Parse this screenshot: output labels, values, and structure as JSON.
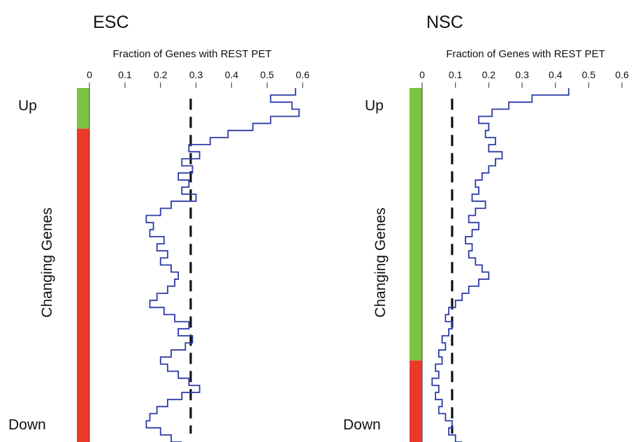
{
  "chart_data": [
    {
      "type": "line",
      "title": "ESC",
      "xlabel": "Fraction of Genes with REST PET",
      "ylabel": "Changing Genes",
      "row_labels": {
        "top": "Up",
        "bottom": "Down"
      },
      "xticks": [
        0,
        0.1,
        0.2,
        0.3,
        0.4,
        0.5,
        0.6
      ],
      "xtick_labels": [
        "0",
        "0.1",
        "0.2",
        "0.3",
        "0.4",
        "0.5",
        "0.6"
      ],
      "xlim": [
        0,
        0.6
      ],
      "ylim": [
        0,
        1
      ],
      "reference_line": 0.285,
      "side_bar": [
        {
          "from": 0,
          "to": 0.115,
          "color": "#7dc242"
        },
        {
          "from": 0.115,
          "to": 1,
          "color": "#e8392a"
        }
      ],
      "series": [
        {
          "color": "#2b3aa8",
          "y": [
            0,
            0.02,
            0.04,
            0.06,
            0.08,
            0.1,
            0.12,
            0.14,
            0.16,
            0.18,
            0.2,
            0.22,
            0.24,
            0.26,
            0.28,
            0.3,
            0.32,
            0.34,
            0.36,
            0.38,
            0.4,
            0.42,
            0.44,
            0.46,
            0.48,
            0.5,
            0.52,
            0.54,
            0.56,
            0.58,
            0.6,
            0.62,
            0.64,
            0.66,
            0.68,
            0.7,
            0.72,
            0.74,
            0.76,
            0.78,
            0.8,
            0.82,
            0.84,
            0.86,
            0.88,
            0.9,
            0.92,
            0.94,
            0.96,
            0.98,
            1.0
          ],
          "x": [
            0.58,
            0.51,
            0.57,
            0.59,
            0.51,
            0.46,
            0.39,
            0.34,
            0.28,
            0.31,
            0.26,
            0.29,
            0.25,
            0.28,
            0.26,
            0.3,
            0.23,
            0.2,
            0.16,
            0.18,
            0.17,
            0.21,
            0.19,
            0.22,
            0.2,
            0.23,
            0.25,
            0.24,
            0.22,
            0.19,
            0.17,
            0.21,
            0.24,
            0.28,
            0.25,
            0.29,
            0.27,
            0.23,
            0.2,
            0.22,
            0.25,
            0.28,
            0.31,
            0.26,
            0.22,
            0.19,
            0.17,
            0.16,
            0.2,
            0.23,
            0.26
          ]
        }
      ]
    },
    {
      "type": "line",
      "title": "NSC",
      "xlabel": "Fraction of Genes with REST PET",
      "ylabel": "Changing Genes",
      "row_labels": {
        "top": "Up",
        "bottom": "Down"
      },
      "xticks": [
        0,
        0.1,
        0.2,
        0.3,
        0.4,
        0.5,
        0.6
      ],
      "xtick_labels": [
        "0",
        "0.1",
        "0.2",
        "0.3",
        "0.4",
        "0.5",
        "0.6"
      ],
      "xlim": [
        0,
        0.6
      ],
      "ylim": [
        0,
        1
      ],
      "reference_line": 0.09,
      "side_bar": [
        {
          "from": 0,
          "to": 0.77,
          "color": "#7dc242"
        },
        {
          "from": 0.77,
          "to": 1,
          "color": "#e8392a"
        }
      ],
      "series": [
        {
          "color": "#2b3aa8",
          "y": [
            0,
            0.02,
            0.04,
            0.06,
            0.08,
            0.1,
            0.12,
            0.14,
            0.16,
            0.18,
            0.2,
            0.22,
            0.24,
            0.26,
            0.28,
            0.3,
            0.32,
            0.34,
            0.36,
            0.38,
            0.4,
            0.42,
            0.44,
            0.46,
            0.48,
            0.5,
            0.52,
            0.54,
            0.56,
            0.58,
            0.6,
            0.62,
            0.64,
            0.66,
            0.68,
            0.7,
            0.72,
            0.74,
            0.76,
            0.78,
            0.8,
            0.82,
            0.84,
            0.86,
            0.88,
            0.9,
            0.92,
            0.94,
            0.96,
            0.98,
            1.0
          ],
          "x": [
            0.44,
            0.33,
            0.26,
            0.21,
            0.17,
            0.2,
            0.19,
            0.22,
            0.2,
            0.24,
            0.22,
            0.2,
            0.18,
            0.16,
            0.17,
            0.15,
            0.19,
            0.16,
            0.14,
            0.17,
            0.15,
            0.13,
            0.15,
            0.14,
            0.16,
            0.18,
            0.2,
            0.17,
            0.14,
            0.12,
            0.1,
            0.08,
            0.07,
            0.09,
            0.08,
            0.06,
            0.07,
            0.05,
            0.06,
            0.04,
            0.05,
            0.03,
            0.05,
            0.04,
            0.06,
            0.05,
            0.07,
            0.09,
            0.08,
            0.1,
            0.12
          ]
        }
      ]
    }
  ]
}
